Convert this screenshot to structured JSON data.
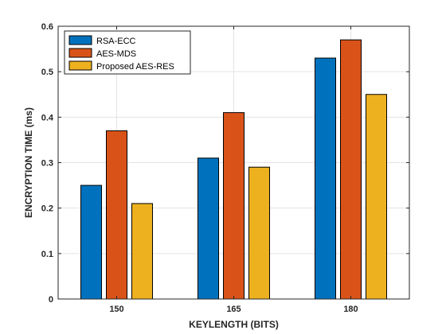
{
  "chart_data": {
    "type": "bar",
    "title": "",
    "xlabel": "KEYLENGTH (BITS)",
    "ylabel": "ENCRYPTION TIME (ms)",
    "categories": [
      "150",
      "165",
      "180"
    ],
    "ylim": [
      0,
      0.6
    ],
    "yticks": [
      "0",
      "0.1",
      "0.2",
      "0.3",
      "0.4",
      "0.5",
      "0.6"
    ],
    "grid": true,
    "legend_position": "top-left",
    "series": [
      {
        "name": "RSA-ECC",
        "color": "#0072BD",
        "values": [
          0.25,
          0.31,
          0.53
        ]
      },
      {
        "name": "AES-MDS",
        "color": "#D95319",
        "values": [
          0.37,
          0.41,
          0.57
        ]
      },
      {
        "name": "Proposed AES-RES",
        "color": "#EDB120",
        "values": [
          0.21,
          0.29,
          0.45
        ]
      }
    ]
  }
}
